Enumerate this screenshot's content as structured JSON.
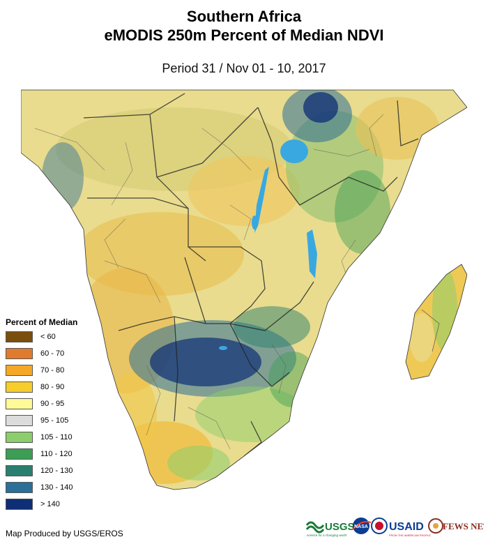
{
  "title_line1": "Southern Africa",
  "title_line2": "eMODIS 250m Percent of Median NDVI",
  "subtitle": "Period 31 / Nov 01 - 10, 2017",
  "legend": {
    "title": "Percent of Median",
    "items": [
      {
        "label": "< 60",
        "color": "#7a4e0d"
      },
      {
        "label": "60 - 70",
        "color": "#e07b2e"
      },
      {
        "label": "70 - 80",
        "color": "#f4a825"
      },
      {
        "label": "80 - 90",
        "color": "#f6cd2a"
      },
      {
        "label": "90 - 95",
        "color": "#fffb98"
      },
      {
        "label": "95 - 105",
        "color": "#dcdcdc"
      },
      {
        "label": "105 - 110",
        "color": "#8dce6c"
      },
      {
        "label": "110 - 120",
        "color": "#3c9e55"
      },
      {
        "label": "120 - 130",
        "color": "#2b7f6e"
      },
      {
        "label": "130 - 140",
        "color": "#2c6f98"
      },
      {
        "label": "> 140",
        "color": "#0e2e76"
      }
    ]
  },
  "credit": "Map Produced by USGS/EROS",
  "logos": {
    "usgs": "USGS",
    "usgs_tagline": "science for a changing world",
    "nasa": "NASA",
    "usaid": "USAID",
    "usaid_tagline": "FROM THE AMERICAN PEOPLE",
    "fewsnet": "FEWS NET"
  }
}
